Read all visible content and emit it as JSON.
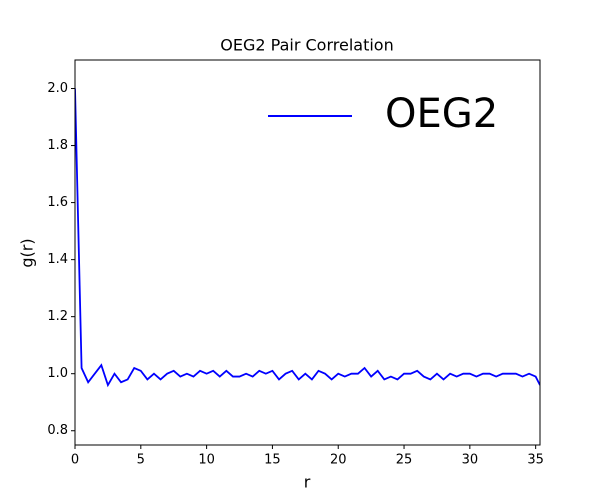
{
  "chart_data": {
    "type": "line",
    "title": "OEG2 Pair Correlation",
    "x_label": "r",
    "y_label": "g(r)",
    "x": [
      0,
      0.5,
      1,
      1.5,
      2,
      2.5,
      3,
      3.5,
      4,
      4.5,
      5,
      5.5,
      6,
      6.5,
      7,
      7.5,
      8,
      8.5,
      9,
      9.5,
      10,
      10.5,
      11,
      11.5,
      12,
      12.5,
      13,
      13.5,
      14,
      14.5,
      15,
      15.5,
      16,
      16.5,
      17,
      17.5,
      18,
      18.5,
      19,
      19.5,
      20,
      20.5,
      21,
      21.5,
      22,
      22.5,
      23,
      23.5,
      24,
      24.5,
      25,
      25.5,
      26,
      26.5,
      27,
      27.5,
      28,
      28.5,
      29,
      29.5,
      30,
      30.5,
      31,
      31.5,
      32,
      32.5,
      33,
      33.5,
      34,
      34.5,
      35,
      35.33
    ],
    "series": [
      {
        "name": "OEG2",
        "color": "#0000ff",
        "values": [
          2.0,
          1.02,
          0.97,
          1.0,
          1.03,
          0.96,
          1.0,
          0.97,
          0.98,
          1.02,
          1.01,
          0.98,
          1.0,
          0.98,
          1.0,
          1.01,
          0.99,
          1.0,
          0.99,
          1.01,
          1.0,
          1.01,
          0.99,
          1.01,
          0.99,
          0.99,
          1.0,
          0.99,
          1.01,
          1.0,
          1.01,
          0.98,
          1.0,
          1.01,
          0.98,
          1.0,
          0.98,
          1.01,
          1.0,
          0.98,
          1.0,
          0.99,
          1.0,
          1.0,
          1.02,
          0.99,
          1.01,
          0.98,
          0.99,
          0.98,
          1.0,
          1.0,
          1.01,
          0.99,
          0.98,
          1.0,
          0.98,
          1.0,
          0.99,
          1.0,
          1.0,
          0.99,
          1.0,
          1.0,
          0.99,
          1.0,
          1.0,
          1.0,
          0.99,
          1.0,
          0.99,
          0.96
        ]
      }
    ],
    "xlim": [
      0,
      35.33
    ],
    "ylim": [
      0.75,
      2.1
    ],
    "xticks": [
      0,
      5,
      10,
      15,
      20,
      25,
      30,
      35
    ],
    "yticks": [
      0.8,
      {
        "value": 1,
        "label": "1.0"
      },
      1.2,
      1.4,
      1.6,
      1.8,
      {
        "value": 2,
        "label": "2.0"
      }
    ],
    "legend": "upper right"
  }
}
